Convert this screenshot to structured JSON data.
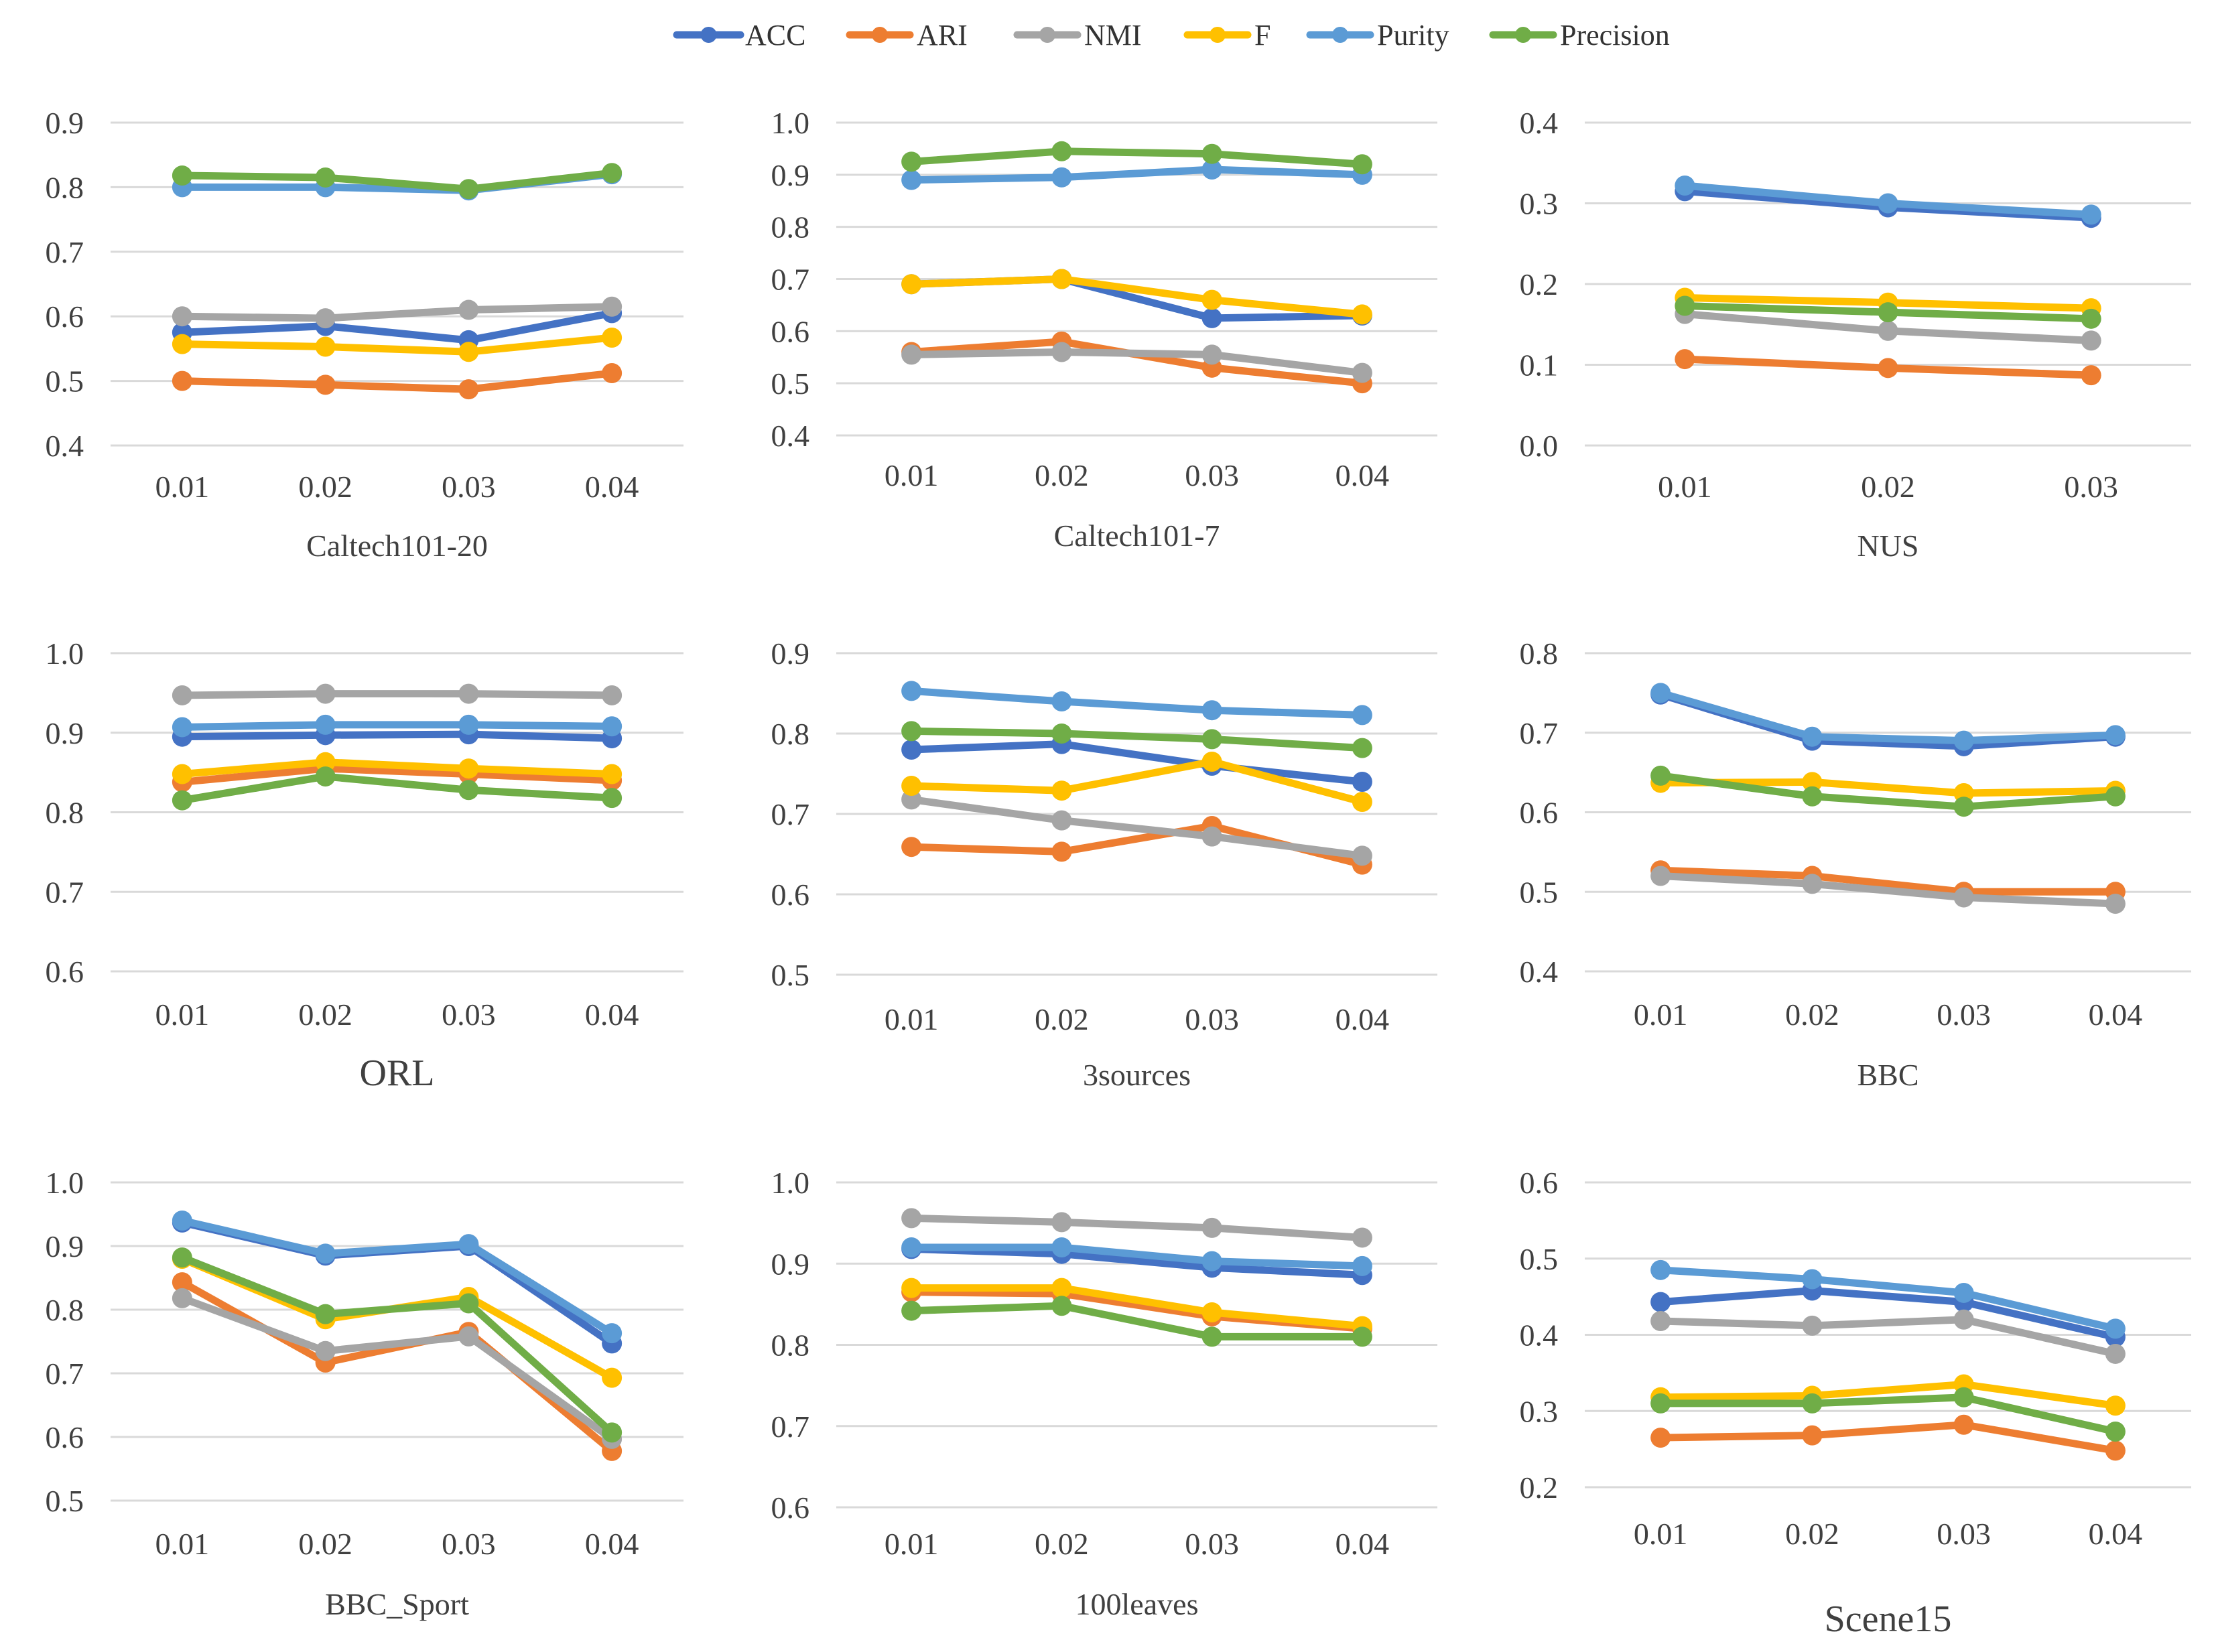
{
  "legend": {
    "series_order": [
      "ACC",
      "ARI",
      "NMI",
      "F",
      "Purity",
      "Precision"
    ],
    "colors": {
      "ACC": "#4472C4",
      "ARI": "#ED7D31",
      "NMI": "#A5A5A5",
      "F": "#FFC000",
      "Purity": "#5B9BD5",
      "Precision": "#70AD47"
    },
    "grid_color": "#D9D9D9"
  },
  "chart_data": [
    {
      "type": "line",
      "title": "Caltech101-20",
      "categories": [
        "0.01",
        "0.02",
        "0.03",
        "0.04"
      ],
      "ylim": [
        0.4,
        0.9
      ],
      "yticks": [
        "0.4",
        "0.5",
        "0.6",
        "0.7",
        "0.8",
        "0.9"
      ],
      "series": [
        {
          "name": "ACC",
          "values": [
            0.575,
            0.585,
            0.563,
            0.605
          ]
        },
        {
          "name": "ARI",
          "values": [
            0.5,
            0.494,
            0.487,
            0.512
          ]
        },
        {
          "name": "NMI",
          "values": [
            0.6,
            0.597,
            0.61,
            0.615
          ]
        },
        {
          "name": "F",
          "values": [
            0.557,
            0.553,
            0.545,
            0.567
          ]
        },
        {
          "name": "Purity",
          "values": [
            0.8,
            0.8,
            0.795,
            0.82
          ]
        },
        {
          "name": "Precision",
          "values": [
            0.818,
            0.815,
            0.797,
            0.822
          ]
        }
      ]
    },
    {
      "type": "line",
      "title": "Caltech101-7",
      "categories": [
        "0.01",
        "0.02",
        "0.03",
        "0.04"
      ],
      "ylim": [
        0.4,
        1.0
      ],
      "yticks": [
        "0.4",
        "0.5",
        "0.6",
        "0.7",
        "0.8",
        "0.9",
        "1.0"
      ],
      "series": [
        {
          "name": "ACC",
          "values": [
            0.69,
            0.7,
            0.625,
            0.63
          ]
        },
        {
          "name": "ARI",
          "values": [
            0.56,
            0.58,
            0.53,
            0.5
          ]
        },
        {
          "name": "NMI",
          "values": [
            0.555,
            0.56,
            0.555,
            0.52
          ]
        },
        {
          "name": "F",
          "values": [
            0.69,
            0.7,
            0.66,
            0.632
          ]
        },
        {
          "name": "Purity",
          "values": [
            0.89,
            0.895,
            0.91,
            0.9
          ]
        },
        {
          "name": "Precision",
          "values": [
            0.925,
            0.945,
            0.94,
            0.92
          ]
        }
      ]
    },
    {
      "type": "line",
      "title": "NUS",
      "categories": [
        "0.01",
        "0.02",
        "0.03"
      ],
      "ylim": [
        0.0,
        0.4
      ],
      "yticks": [
        "0.0",
        "0.1",
        "0.2",
        "0.3",
        "0.4"
      ],
      "series": [
        {
          "name": "ACC",
          "values": [
            0.315,
            0.295,
            0.282
          ]
        },
        {
          "name": "ARI",
          "values": [
            0.107,
            0.096,
            0.087
          ]
        },
        {
          "name": "NMI",
          "values": [
            0.163,
            0.142,
            0.13
          ]
        },
        {
          "name": "F",
          "values": [
            0.183,
            0.177,
            0.17
          ]
        },
        {
          "name": "Purity",
          "values": [
            0.322,
            0.3,
            0.286
          ]
        },
        {
          "name": "Precision",
          "values": [
            0.173,
            0.165,
            0.157
          ]
        }
      ]
    },
    {
      "type": "line",
      "title": "ORL",
      "categories": [
        "0.01",
        "0.02",
        "0.03",
        "0.04"
      ],
      "ylim": [
        0.6,
        1.0
      ],
      "yticks": [
        "0.6",
        "0.7",
        "0.8",
        "0.9",
        "1.0"
      ],
      "series": [
        {
          "name": "ACC",
          "values": [
            0.895,
            0.897,
            0.898,
            0.893
          ]
        },
        {
          "name": "ARI",
          "values": [
            0.838,
            0.855,
            0.848,
            0.84
          ]
        },
        {
          "name": "NMI",
          "values": [
            0.947,
            0.949,
            0.949,
            0.947
          ]
        },
        {
          "name": "F",
          "values": [
            0.848,
            0.863,
            0.855,
            0.848
          ]
        },
        {
          "name": "Purity",
          "values": [
            0.907,
            0.91,
            0.91,
            0.908
          ]
        },
        {
          "name": "Precision",
          "values": [
            0.815,
            0.845,
            0.828,
            0.818
          ]
        }
      ]
    },
    {
      "type": "line",
      "title": "3sources",
      "categories": [
        "0.01",
        "0.02",
        "0.03",
        "0.04"
      ],
      "ylim": [
        0.5,
        0.9
      ],
      "yticks": [
        "0.5",
        "0.6",
        "0.7",
        "0.8",
        "0.9"
      ],
      "series": [
        {
          "name": "ACC",
          "values": [
            0.78,
            0.787,
            0.76,
            0.74
          ]
        },
        {
          "name": "ARI",
          "values": [
            0.659,
            0.653,
            0.685,
            0.637
          ]
        },
        {
          "name": "NMI",
          "values": [
            0.718,
            0.692,
            0.672,
            0.648
          ]
        },
        {
          "name": "F",
          "values": [
            0.735,
            0.729,
            0.765,
            0.715
          ]
        },
        {
          "name": "Purity",
          "values": [
            0.853,
            0.84,
            0.829,
            0.823
          ]
        },
        {
          "name": "Precision",
          "values": [
            0.803,
            0.8,
            0.793,
            0.782
          ]
        }
      ]
    },
    {
      "type": "line",
      "title": "BBC",
      "categories": [
        "0.01",
        "0.02",
        "0.03",
        "0.04"
      ],
      "ylim": [
        0.4,
        0.8
      ],
      "yticks": [
        "0.4",
        "0.5",
        "0.6",
        "0.7",
        "0.8"
      ],
      "series": [
        {
          "name": "ACC",
          "values": [
            0.748,
            0.69,
            0.683,
            0.695
          ]
        },
        {
          "name": "ARI",
          "values": [
            0.527,
            0.52,
            0.5,
            0.5
          ]
        },
        {
          "name": "NMI",
          "values": [
            0.52,
            0.51,
            0.493,
            0.485
          ]
        },
        {
          "name": "F",
          "values": [
            0.637,
            0.638,
            0.624,
            0.627
          ]
        },
        {
          "name": "Purity",
          "values": [
            0.75,
            0.695,
            0.69,
            0.697
          ]
        },
        {
          "name": "Precision",
          "values": [
            0.646,
            0.62,
            0.607,
            0.62
          ]
        }
      ]
    },
    {
      "type": "line",
      "title": "BBC_Sport",
      "categories": [
        "0.01",
        "0.02",
        "0.03",
        "0.04"
      ],
      "ylim": [
        0.5,
        1.0
      ],
      "yticks": [
        "0.5",
        "0.6",
        "0.7",
        "0.8",
        "0.9",
        "1.0"
      ],
      "series": [
        {
          "name": "ACC",
          "values": [
            0.937,
            0.885,
            0.9,
            0.747
          ]
        },
        {
          "name": "ARI",
          "values": [
            0.843,
            0.717,
            0.765,
            0.578
          ]
        },
        {
          "name": "NMI",
          "values": [
            0.818,
            0.735,
            0.758,
            0.597
          ]
        },
        {
          "name": "F",
          "values": [
            0.88,
            0.785,
            0.82,
            0.693
          ]
        },
        {
          "name": "Purity",
          "values": [
            0.94,
            0.888,
            0.903,
            0.763
          ]
        },
        {
          "name": "Precision",
          "values": [
            0.882,
            0.793,
            0.81,
            0.607
          ]
        }
      ]
    },
    {
      "type": "line",
      "title": "100leaves",
      "categories": [
        "0.01",
        "0.02",
        "0.03",
        "0.04"
      ],
      "ylim": [
        0.6,
        1.0
      ],
      "yticks": [
        "0.6",
        "0.7",
        "0.8",
        "0.9",
        "1.0"
      ],
      "series": [
        {
          "name": "ACC",
          "values": [
            0.918,
            0.912,
            0.895,
            0.886
          ]
        },
        {
          "name": "ARI",
          "values": [
            0.865,
            0.863,
            0.835,
            0.82
          ]
        },
        {
          "name": "NMI",
          "values": [
            0.956,
            0.951,
            0.944,
            0.932
          ]
        },
        {
          "name": "F",
          "values": [
            0.87,
            0.87,
            0.84,
            0.823
          ]
        },
        {
          "name": "Purity",
          "values": [
            0.92,
            0.92,
            0.903,
            0.897
          ]
        },
        {
          "name": "Precision",
          "values": [
            0.842,
            0.848,
            0.81,
            0.81
          ]
        }
      ]
    },
    {
      "type": "line",
      "title": "Scene15",
      "categories": [
        "0.01",
        "0.02",
        "0.03",
        "0.04"
      ],
      "ylim": [
        0.2,
        0.6
      ],
      "yticks": [
        "0.2",
        "0.3",
        "0.4",
        "0.5",
        "0.6"
      ],
      "series": [
        {
          "name": "ACC",
          "values": [
            0.443,
            0.458,
            0.443,
            0.397
          ]
        },
        {
          "name": "ARI",
          "values": [
            0.265,
            0.268,
            0.282,
            0.248
          ]
        },
        {
          "name": "NMI",
          "values": [
            0.418,
            0.412,
            0.42,
            0.375
          ]
        },
        {
          "name": "F",
          "values": [
            0.318,
            0.32,
            0.335,
            0.307
          ]
        },
        {
          "name": "Purity",
          "values": [
            0.485,
            0.473,
            0.455,
            0.408
          ]
        },
        {
          "name": "Precision",
          "values": [
            0.31,
            0.31,
            0.318,
            0.273
          ]
        }
      ]
    }
  ]
}
